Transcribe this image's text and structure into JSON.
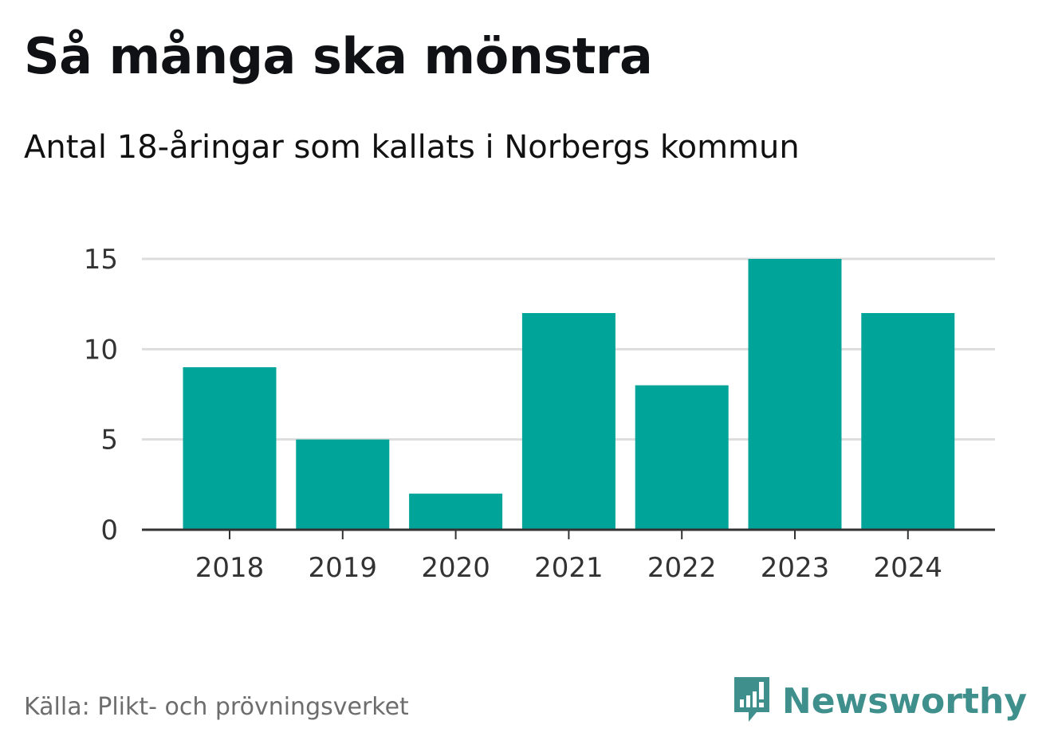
{
  "title": "Så många ska mönstra",
  "subtitle": "Antal 18-åringar som kallats i Norbergs kommun",
  "source": "Källa: Plikt- och prövningsverket",
  "brand": {
    "name": "Newsworthy",
    "icon": "newsworthy-logo-icon"
  },
  "colors": {
    "bar": "#00a499",
    "grid": "#dddddd",
    "axis": "#333333",
    "brand": "#3f8f8c"
  },
  "chart_data": {
    "type": "bar",
    "title": "Så många ska mönstra",
    "subtitle": "Antal 18-åringar som kallats i Norbergs kommun",
    "categories": [
      "2018",
      "2019",
      "2020",
      "2021",
      "2022",
      "2023",
      "2024"
    ],
    "values": [
      9,
      5,
      2,
      12,
      8,
      15,
      12
    ],
    "xlabel": "",
    "ylabel": "",
    "ylim": [
      0,
      15
    ],
    "yticks": [
      0,
      5,
      10,
      15
    ],
    "grid": true
  }
}
